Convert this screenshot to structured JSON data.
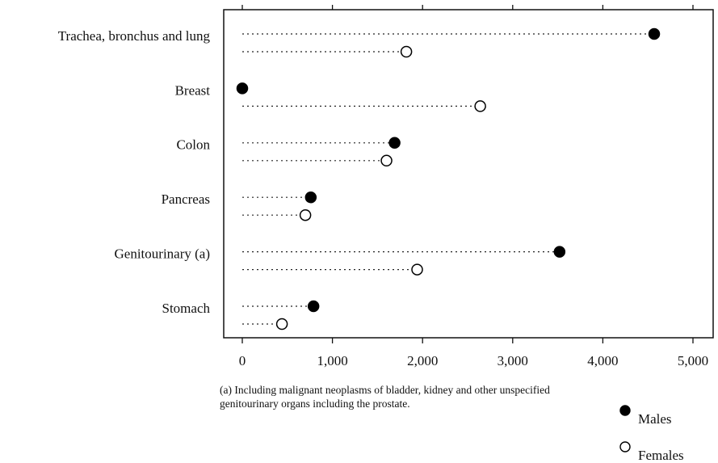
{
  "chart_data": {
    "type": "dot",
    "categories": [
      "Trachea, bronchus and lung",
      "Breast",
      "Colon",
      "Pancreas",
      "Genitourinary (a)",
      "Stomach"
    ],
    "series": [
      {
        "name": "Males",
        "color": "#000000",
        "filled": true,
        "values": [
          4570,
          0,
          1690,
          760,
          3520,
          790
        ]
      },
      {
        "name": "Females",
        "color": "#000000",
        "filled": false,
        "values": [
          1820,
          2640,
          1600,
          700,
          1940,
          440
        ]
      }
    ],
    "xlim": [
      0,
      5000
    ],
    "xticks": [
      0,
      {
        "value": 1000,
        "label": "1,000"
      },
      {
        "value": 2000,
        "label": "2,000"
      },
      {
        "value": 3000,
        "label": "3,000"
      },
      {
        "value": 4000,
        "label": "4,000"
      },
      {
        "value": 5000,
        "label": "5,000"
      }
    ],
    "note": [
      "(a) Including malignant neoplasms of bladder, kidney and other unspecified",
      "genitourinary organs including the prostate."
    ]
  }
}
